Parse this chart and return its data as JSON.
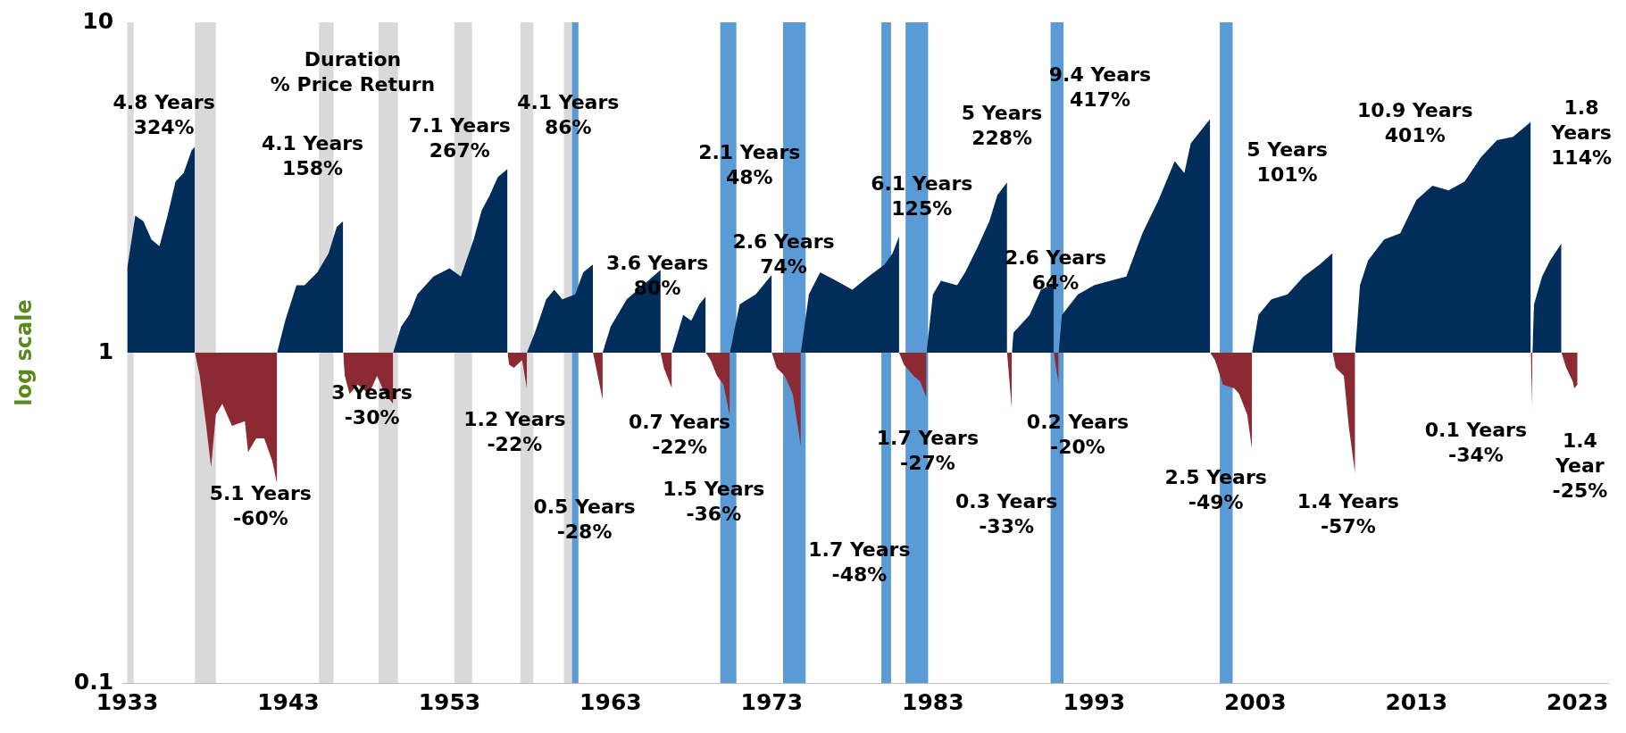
{
  "chart_data": {
    "type": "area",
    "ylabel": "log scale",
    "log": "y",
    "xlim": [
      1932.7,
      2024.9
    ],
    "xticks": [
      1933,
      1943,
      1953,
      1963,
      1973,
      1983,
      1993,
      2003,
      2013,
      2023
    ],
    "ylim": [
      0.1,
      10
    ],
    "yticks": [
      0.1,
      1,
      10
    ],
    "grid": false,
    "legend": false,
    "series": [
      {
        "color": "#002d5a",
        "x": [
          1933.0,
          1933.5,
          1934,
          1934.5,
          1935,
          1935.5,
          1936,
          1936.5,
          1937,
          1937.2
        ],
        "values": [
          1.8,
          2.6,
          2.5,
          2.2,
          2.1,
          2.6,
          3.3,
          3.5,
          4.1,
          4.2
        ]
      },
      {
        "color": "#8b2a33",
        "x": [
          1937.2,
          1937.5,
          1937.9,
          1938.2,
          1938.5,
          1938.9,
          1939.5,
          1940.3,
          1940.5,
          1941,
          1941.5,
          1942,
          1942.3,
          1942.3
        ],
        "values": [
          1.0,
          0.85,
          0.6,
          0.45,
          0.65,
          0.7,
          0.6,
          0.62,
          0.5,
          0.55,
          0.55,
          0.47,
          0.4,
          1.0
        ]
      },
      {
        "color": "#002d5a",
        "x": [
          1942.3,
          1942.8,
          1943.5,
          1944,
          1944.8,
          1945.5,
          1946,
          1946.4
        ],
        "values": [
          1.0,
          1.25,
          1.6,
          1.6,
          1.75,
          2.0,
          2.4,
          2.5
        ]
      },
      {
        "color": "#8b2a33",
        "x": [
          1946.4,
          1946.5,
          1946.8,
          1947.3,
          1948,
          1948.5,
          1949,
          1949.5,
          1949.5
        ],
        "values": [
          1.0,
          0.85,
          0.75,
          0.8,
          0.75,
          0.85,
          0.75,
          0.7,
          1.0
        ]
      },
      {
        "color": "#002d5a",
        "x": [
          1949.5,
          1950,
          1950.5,
          1951,
          1952,
          1953,
          1953.7,
          1954.5,
          1955,
          1955.5,
          1956,
          1956.6
        ],
        "values": [
          1.0,
          1.2,
          1.3,
          1.5,
          1.7,
          1.8,
          1.7,
          2.2,
          2.7,
          3.0,
          3.4,
          3.6
        ]
      },
      {
        "color": "#8b2a33",
        "x": [
          1956.6,
          1956.7,
          1957,
          1957.5,
          1957.8,
          1957.8
        ],
        "values": [
          1.0,
          0.92,
          0.9,
          0.95,
          0.78,
          1.0
        ]
      },
      {
        "color": "#002d5a",
        "x": [
          1957.8,
          1958.3,
          1959,
          1959.5,
          1960,
          1960.8,
          1961.3,
          1961.9
        ],
        "values": [
          1.0,
          1.15,
          1.45,
          1.55,
          1.45,
          1.5,
          1.75,
          1.85
        ]
      },
      {
        "color": "#8b2a33",
        "x": [
          1961.9,
          1962,
          1962.2,
          1962.5,
          1962.5
        ],
        "values": [
          1.0,
          0.95,
          0.85,
          0.72,
          1.0
        ]
      },
      {
        "color": "#002d5a",
        "x": [
          1962.5,
          1963,
          1964,
          1965,
          1966.1
        ],
        "values": [
          1.0,
          1.2,
          1.45,
          1.6,
          1.78
        ]
      },
      {
        "color": "#8b2a33",
        "x": [
          1966.1,
          1966.3,
          1966.8,
          1966.8
        ],
        "values": [
          1.0,
          0.9,
          0.78,
          1.0
        ]
      },
      {
        "color": "#002d5a",
        "x": [
          1966.8,
          1967.5,
          1968,
          1968.5,
          1968.9
        ],
        "values": [
          1.0,
          1.3,
          1.25,
          1.4,
          1.48
        ]
      },
      {
        "color": "#8b2a33",
        "x": [
          1968.9,
          1969.2,
          1969.6,
          1970,
          1970.4,
          1970.4
        ],
        "values": [
          1.0,
          0.95,
          0.85,
          0.8,
          0.64,
          1.0
        ]
      },
      {
        "color": "#002d5a",
        "x": [
          1970.4,
          1971,
          1971.5,
          1972,
          1973
        ],
        "values": [
          1.0,
          1.4,
          1.45,
          1.5,
          1.72
        ]
      },
      {
        "color": "#8b2a33",
        "x": [
          1973,
          1973.3,
          1973.8,
          1974.3,
          1974.8,
          1974.8
        ],
        "values": [
          1.0,
          0.9,
          0.85,
          0.75,
          0.52,
          1.0
        ]
      },
      {
        "color": "#002d5a",
        "x": [
          1974.8,
          1975.3,
          1976,
          1977,
          1978,
          1979,
          1980,
          1980.5,
          1980.9
        ],
        "values": [
          1.0,
          1.5,
          1.75,
          1.65,
          1.55,
          1.7,
          1.85,
          2.0,
          2.25
        ]
      },
      {
        "color": "#8b2a33",
        "x": [
          1980.9,
          1981.2,
          1981.8,
          1982.2,
          1982.6,
          1982.6
        ],
        "values": [
          1.0,
          0.92,
          0.85,
          0.82,
          0.73,
          1.0
        ]
      },
      {
        "color": "#002d5a",
        "x": [
          1982.6,
          1983,
          1983.5,
          1984.5,
          1985,
          1985.8,
          1986.5,
          1987,
          1987.6
        ],
        "values": [
          1.0,
          1.5,
          1.65,
          1.6,
          1.75,
          2.1,
          2.5,
          3.0,
          3.28
        ]
      },
      {
        "color": "#8b2a33",
        "x": [
          1987.6,
          1987.9,
          1987.9
        ],
        "values": [
          1.0,
          0.67,
          1.0
        ]
      },
      {
        "color": "#002d5a",
        "x": [
          1987.9,
          1988,
          1989,
          1989.7,
          1990.5
        ],
        "values": [
          1.0,
          1.15,
          1.3,
          1.55,
          1.62
        ]
      },
      {
        "color": "#8b2a33",
        "x": [
          1990.5,
          1990.8,
          1990.8
        ],
        "values": [
          1.0,
          0.8,
          1.0
        ]
      },
      {
        "color": "#002d5a",
        "x": [
          1990.8,
          1991,
          1992,
          1993,
          1994,
          1995,
          1996,
          1997,
          1998,
          1998.6,
          1999,
          2000.2
        ],
        "values": [
          1.0,
          1.3,
          1.5,
          1.6,
          1.65,
          1.7,
          2.3,
          2.9,
          3.8,
          3.5,
          4.3,
          5.1
        ]
      },
      {
        "color": "#8b2a33",
        "x": [
          2000.2,
          2000.5,
          2001,
          2001.7,
          2002,
          2002.5,
          2002.8,
          2002.8
        ],
        "values": [
          1.0,
          0.95,
          0.8,
          0.78,
          0.75,
          0.65,
          0.51,
          1.0
        ]
      },
      {
        "color": "#002d5a",
        "x": [
          2002.8,
          2003.2,
          2004,
          2005,
          2006,
          2007,
          2007.8
        ],
        "values": [
          1.0,
          1.3,
          1.45,
          1.5,
          1.7,
          1.85,
          2.0
        ]
      },
      {
        "color": "#8b2a33",
        "x": [
          2007.8,
          2008,
          2008.5,
          2008.8,
          2009.2,
          2009.2
        ],
        "values": [
          1.0,
          0.9,
          0.85,
          0.6,
          0.43,
          1.0
        ]
      },
      {
        "color": "#002d5a",
        "x": [
          2009.2,
          2009.5,
          2010,
          2011,
          2012,
          2013,
          2014,
          2015,
          2016,
          2017,
          2018,
          2019,
          2020.1
        ],
        "values": [
          1.0,
          1.6,
          1.9,
          2.2,
          2.3,
          2.9,
          3.2,
          3.1,
          3.3,
          3.9,
          4.4,
          4.5,
          5.0
        ]
      },
      {
        "color": "#8b2a33",
        "x": [
          2020.1,
          2020.2,
          2020.2
        ],
        "values": [
          1.0,
          0.66,
          1.0
        ]
      },
      {
        "color": "#002d5a",
        "x": [
          2020.2,
          2020.3,
          2020.8,
          2021.3,
          2022
        ],
        "values": [
          1.0,
          1.4,
          1.7,
          1.9,
          2.14
        ]
      },
      {
        "color": "#8b2a33",
        "x": [
          2022,
          2022.3,
          2022.7,
          2022.8,
          2023,
          2023
        ],
        "values": [
          1.0,
          0.9,
          0.82,
          0.78,
          0.8,
          1.0
        ]
      }
    ],
    "bands": [
      {
        "axis": "x",
        "from": 1933.0,
        "to": 1933.4,
        "color": "#d9d9d9"
      },
      {
        "axis": "x",
        "from": 1937.2,
        "to": 1938.5,
        "color": "#d9d9d9"
      },
      {
        "axis": "x",
        "from": 1944.9,
        "to": 1945.8,
        "color": "#d9d9d9"
      },
      {
        "axis": "x",
        "from": 1948.6,
        "to": 1949.8,
        "color": "#d9d9d9"
      },
      {
        "axis": "x",
        "from": 1953.3,
        "to": 1954.4,
        "color": "#d9d9d9"
      },
      {
        "axis": "x",
        "from": 1957.4,
        "to": 1958.2,
        "color": "#d9d9d9"
      },
      {
        "axis": "x",
        "from": 1960.1,
        "to": 1960.6,
        "color": "#d9d9d9"
      },
      {
        "axis": "x",
        "from": 1960.6,
        "to": 1961.0,
        "color": "#5b9bd5"
      },
      {
        "axis": "x",
        "from": 1969.8,
        "to": 1970.8,
        "color": "#5b9bd5"
      },
      {
        "axis": "x",
        "from": 1973.7,
        "to": 1975.1,
        "color": "#5b9bd5"
      },
      {
        "axis": "x",
        "from": 1979.8,
        "to": 1980.4,
        "color": "#5b9bd5"
      },
      {
        "axis": "x",
        "from": 1981.3,
        "to": 1982.7,
        "color": "#5b9bd5"
      },
      {
        "axis": "x",
        "from": 1990.3,
        "to": 1991.1,
        "color": "#5b9bd5"
      },
      {
        "axis": "x",
        "from": 2000.8,
        "to": 2001.6,
        "color": "#5b9bd5"
      }
    ],
    "annotations": [
      "Duration\n% Price Return",
      "4.8 Years\n324%",
      "5.1 Years\n-60%",
      "4.1 Years\n158%",
      "3 Years\n-30%",
      "7.1 Years\n267%",
      "1.2 Years\n-22%",
      "4.1 Years\n86%",
      "0.5 Years\n-28%",
      "3.6 Years\n80%",
      "0.7 Years\n-22%",
      "2.1 Years\n48%",
      "1.5 Years\n-36%",
      "2.6 Years\n74%",
      "1.7 Years\n-48%",
      "6.1 Years\n125%",
      "1.7 Years\n-27%",
      "5 Years\n228%",
      "0.3 Years\n-33%",
      "2.6 Years\n64%",
      "0.2 Years\n-20%",
      "9.4 Years\n417%",
      "2.5 Years\n-49%",
      "5 Years\n101%",
      "1.4 Years\n-57%",
      "10.9 Years\n401%",
      "0.1 Years\n-34%",
      "1.8\nYears\n114%",
      "1.4\nYear\n-25%"
    ]
  }
}
